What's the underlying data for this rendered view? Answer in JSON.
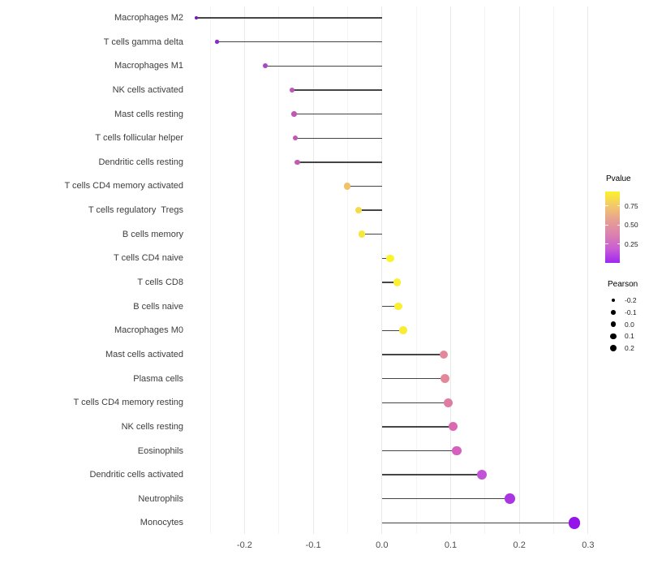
{
  "chart_data": {
    "type": "scatter",
    "variant": "lollipop",
    "title": "",
    "xlabel": "",
    "ylabel": "",
    "xlim": [
      -0.285,
      0.31
    ],
    "x_ticks": [
      -0.2,
      -0.1,
      0.0,
      0.1,
      0.2,
      0.3
    ],
    "x_tick_labels": [
      "-0.2",
      "-0.1",
      "0.0",
      "0.1",
      "0.2",
      "0.3"
    ],
    "grid": "vertical major every 0.1 and minor every 0.05, light gray, no panel border",
    "baseline_x": 0.0,
    "points": [
      {
        "label": "Macrophages M2",
        "pearson": -0.27,
        "pvalue_est": 0.03,
        "color": "#7A1BB3"
      },
      {
        "label": "T cells gamma delta",
        "pearson": -0.24,
        "pvalue_est": 0.08,
        "color": "#8C2AC8"
      },
      {
        "label": "Macrophages M1",
        "pearson": -0.17,
        "pvalue_est": 0.21,
        "color": "#A948C6"
      },
      {
        "label": "NK cells activated",
        "pearson": -0.131,
        "pvalue_est": 0.31,
        "color": "#BE53BA"
      },
      {
        "label": "Mast cells resting",
        "pearson": -0.128,
        "pvalue_est": 0.32,
        "color": "#C156B6"
      },
      {
        "label": "T cells follicular helper",
        "pearson": -0.126,
        "pvalue_est": 0.32,
        "color": "#C156B6"
      },
      {
        "label": "Dendritic cells resting",
        "pearson": -0.123,
        "pvalue_est": 0.34,
        "color": "#C55AB3"
      },
      {
        "label": "T cells CD4 memory activated",
        "pearson": -0.051,
        "pvalue_est": 0.66,
        "color": "#EFC36A"
      },
      {
        "label": "T cells regulatory  Tregs",
        "pearson": -0.034,
        "pvalue_est": 0.76,
        "color": "#F4DA4E"
      },
      {
        "label": "B cells memory",
        "pearson": -0.029,
        "pvalue_est": 0.81,
        "color": "#F7E73C"
      },
      {
        "label": "T cells CD4 naive",
        "pearson": 0.012,
        "pvalue_est": 0.92,
        "color": "#FCF42A"
      },
      {
        "label": "T cells CD8",
        "pearson": 0.022,
        "pvalue_est": 0.9,
        "color": "#FAEF31"
      },
      {
        "label": "B cells naive",
        "pearson": 0.024,
        "pvalue_est": 0.9,
        "color": "#FAEF31"
      },
      {
        "label": "Macrophages M0",
        "pearson": 0.031,
        "pvalue_est": 0.88,
        "color": "#F9EC35"
      },
      {
        "label": "Mast cells activated",
        "pearson": 0.09,
        "pvalue_est": 0.5,
        "color": "#E3889A"
      },
      {
        "label": "Plasma cells",
        "pearson": 0.092,
        "pvalue_est": 0.5,
        "color": "#E3889A"
      },
      {
        "label": "T cells CD4 memory resting",
        "pearson": 0.096,
        "pvalue_est": 0.46,
        "color": "#E07CA3"
      },
      {
        "label": "NK cells resting",
        "pearson": 0.104,
        "pvalue_est": 0.41,
        "color": "#DA69B1"
      },
      {
        "label": "Eosinophils",
        "pearson": 0.109,
        "pvalue_est": 0.38,
        "color": "#D560BD"
      },
      {
        "label": "Dendritic cells activated",
        "pearson": 0.145,
        "pvalue_est": 0.26,
        "color": "#C253D6"
      },
      {
        "label": "Neutrophils",
        "pearson": 0.186,
        "pvalue_est": 0.12,
        "color": "#AC35E2"
      },
      {
        "label": "Monocytes",
        "pearson": 0.28,
        "pvalue_est": 0.04,
        "color": "#9414EB"
      }
    ],
    "legend_pvalue": {
      "title": "Pvalue",
      "tick_labels": [
        "0.75",
        "0.50",
        "0.25"
      ],
      "tick_values": [
        0.75,
        0.5,
        0.25
      ],
      "range": [
        0.0,
        0.94
      ],
      "gradient_top_to_bottom": [
        "#FCF22B",
        "#F2C86B",
        "#E7A093",
        "#DB82AE",
        "#C95ED3",
        "#9F27F0"
      ]
    },
    "legend_pearson": {
      "title": "Pearson",
      "tick_labels": [
        "-0.2",
        "-0.1",
        "0.0",
        "0.1",
        "0.2"
      ],
      "tick_values": [
        -0.2,
        -0.1,
        0.0,
        0.1,
        0.2
      ],
      "dot_color": "#000000"
    },
    "colors": {
      "stem": "#454545",
      "grid_major": "#E9E9E9",
      "grid_minor": "#F4F4F4",
      "axis_text": "#4d4d4d"
    }
  }
}
